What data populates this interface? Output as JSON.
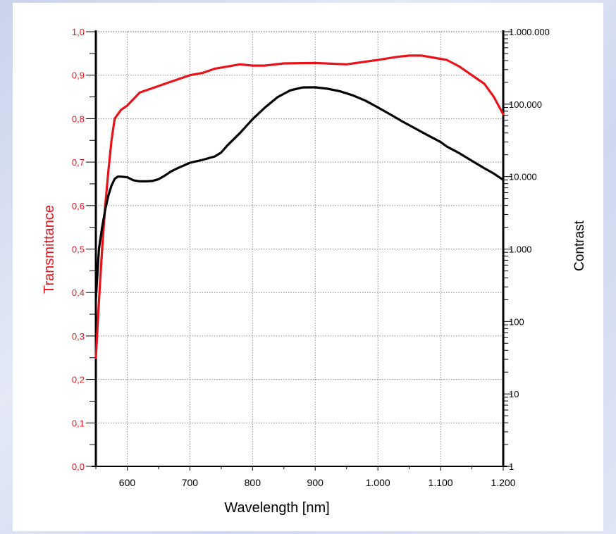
{
  "chart_data": {
    "type": "line",
    "xlabel": "Wavelength [nm]",
    "ylabel_left": "Transmittance",
    "ylabel_right": "Contrast",
    "x_range": [
      550,
      1200
    ],
    "x_ticks": [
      600,
      700,
      800,
      900,
      1000,
      1100,
      1200
    ],
    "x_tick_labels": [
      "600",
      "700",
      "800",
      "900",
      "1.000",
      "1.100",
      "1.200"
    ],
    "y_left_range": [
      0,
      1
    ],
    "y_left_ticks": [
      0,
      0.1,
      0.2,
      0.3,
      0.4,
      0.5,
      0.6,
      0.7,
      0.8,
      0.9,
      1.0
    ],
    "y_left_tick_labels": [
      "0,0",
      "0,1",
      "0,2",
      "0,3",
      "0,4",
      "0,5",
      "0,6",
      "0,7",
      "0,8",
      "0,9",
      "1,0"
    ],
    "y_right_scale": "log",
    "y_right_range": [
      1,
      1000000
    ],
    "y_right_ticks": [
      1,
      10,
      100,
      1000,
      10000,
      100000,
      1000000
    ],
    "y_right_tick_labels": [
      "1",
      "10",
      "100",
      "1.000",
      "10.000",
      "100.000",
      "1.000.000"
    ],
    "grid": true,
    "colors": {
      "transmittance": "#e8131a",
      "contrast": "#000000",
      "axis_left_text": "#e8131a"
    },
    "series": [
      {
        "axis": "left",
        "color": "#e8131a",
        "x": [
          550,
          555,
          560,
          565,
          570,
          575,
          580,
          590,
          600,
          610,
          620,
          640,
          660,
          680,
          700,
          720,
          740,
          760,
          780,
          800,
          820,
          850,
          900,
          950,
          1000,
          1030,
          1050,
          1070,
          1090,
          1110,
          1130,
          1150,
          1170,
          1185,
          1200
        ],
        "y": [
          0.25,
          0.38,
          0.5,
          0.6,
          0.68,
          0.75,
          0.8,
          0.82,
          0.83,
          0.845,
          0.86,
          0.87,
          0.88,
          0.89,
          0.9,
          0.905,
          0.915,
          0.92,
          0.925,
          0.922,
          0.922,
          0.927,
          0.928,
          0.925,
          0.935,
          0.942,
          0.945,
          0.945,
          0.94,
          0.935,
          0.92,
          0.9,
          0.88,
          0.85,
          0.81
        ]
      },
      {
        "axis": "right",
        "color": "#000000",
        "x": [
          550,
          555,
          560,
          565,
          570,
          575,
          580,
          585,
          590,
          600,
          610,
          620,
          630,
          640,
          650,
          660,
          670,
          680,
          700,
          720,
          740,
          750,
          760,
          780,
          800,
          820,
          840,
          860,
          880,
          900,
          920,
          940,
          960,
          980,
          1000,
          1020,
          1040,
          1060,
          1080,
          1100,
          1110,
          1130,
          1150,
          1170,
          1185,
          1200
        ],
        "y": [
          200,
          1000,
          2000,
          3500,
          5500,
          7500,
          9300,
          10000,
          10000,
          9800,
          8900,
          8600,
          8600,
          8700,
          9200,
          10300,
          11800,
          13000,
          15500,
          17000,
          19000,
          21500,
          27000,
          40000,
          62000,
          90000,
          125000,
          155000,
          170000,
          171000,
          163000,
          150000,
          132000,
          112000,
          90000,
          72000,
          57000,
          46000,
          37000,
          30000,
          26000,
          21000,
          16500,
          13000,
          11000,
          9000
        ]
      }
    ]
  }
}
